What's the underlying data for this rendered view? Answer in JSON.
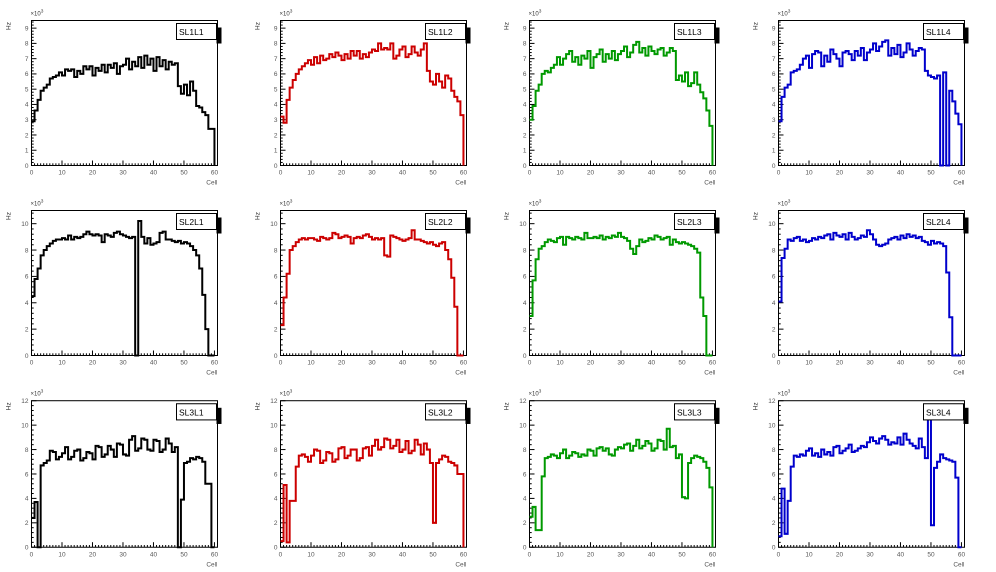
{
  "window": {
    "background": "#ffffff",
    "description": "ROOT-style canvas with 12 rate histograms (3 rows x 4 columns)"
  },
  "axes": {
    "x_label": "Cell",
    "y_label": "Hz",
    "exponent_label": "×10",
    "exponent_power": "3",
    "tick_color": "#555555",
    "frame_color": "#000000"
  },
  "chart_data": [
    {
      "type": "bar",
      "style": "step-histogram",
      "title": "SL1L1",
      "color": "#000000",
      "xlabel": "Cell",
      "ylabel": "Hz",
      "y_scale": "×10³",
      "xlim": [
        0,
        61
      ],
      "ylim": [
        0,
        9.5
      ],
      "bin_width": 1,
      "xticks": [
        0,
        10,
        20,
        30,
        40,
        50,
        60
      ],
      "yticks": [
        0,
        1,
        2,
        3,
        4,
        5,
        6,
        7,
        8,
        9
      ],
      "values": [
        2.9,
        3.6,
        4.3,
        4.9,
        5.1,
        5.3,
        5.7,
        5.8,
        5.9,
        6.1,
        5.9,
        6.3,
        6.2,
        6.3,
        5.8,
        6.2,
        6.0,
        6.5,
        6.3,
        6.5,
        5.9,
        6.4,
        6.2,
        6.6,
        6.1,
        6.6,
        6.4,
        6.7,
        6.0,
        6.5,
        6.6,
        7.0,
        6.3,
        6.8,
        6.5,
        7.1,
        6.4,
        7.2,
        6.6,
        7.0,
        6.2,
        7.1,
        6.5,
        6.9,
        6.3,
        6.8,
        6.6,
        6.7,
        5.2,
        4.7,
        5.3,
        4.6,
        5.5,
        4.9,
        3.9,
        3.8,
        3.5,
        3.3,
        2.4,
        2.4
      ]
    },
    {
      "type": "bar",
      "style": "step-histogram",
      "title": "SL1L2",
      "color": "#cc0000",
      "xlabel": "Cell",
      "ylabel": "Hz",
      "y_scale": "×10³",
      "xlim": [
        0,
        61
      ],
      "ylim": [
        0,
        9.5
      ],
      "bin_width": 1,
      "xticks": [
        0,
        10,
        20,
        30,
        40,
        50,
        60
      ],
      "yticks": [
        0,
        1,
        2,
        3,
        4,
        5,
        6,
        7,
        8,
        9
      ],
      "values": [
        3.2,
        2.8,
        4.3,
        5.1,
        5.6,
        6.0,
        6.3,
        6.5,
        6.7,
        6.9,
        6.6,
        7.1,
        6.7,
        7.2,
        6.9,
        7.0,
        7.3,
        7.1,
        7.4,
        7.2,
        6.9,
        7.3,
        7.0,
        7.5,
        7.2,
        7.5,
        7.0,
        7.3,
        7.1,
        7.4,
        7.6,
        7.5,
        8.0,
        7.6,
        7.7,
        7.6,
        8.0,
        7.0,
        7.2,
        7.6,
        7.8,
        7.1,
        7.3,
        7.8,
        7.4,
        7.2,
        7.6,
        8.0,
        6.2,
        5.5,
        5.3,
        6.0,
        5.5,
        5.1,
        5.9,
        5.7,
        4.9,
        4.5,
        4.2,
        3.3
      ]
    },
    {
      "type": "bar",
      "style": "step-histogram",
      "title": "SL1L3",
      "color": "#009900",
      "xlabel": "Cell",
      "ylabel": "Hz",
      "y_scale": "×10³",
      "xlim": [
        0,
        61
      ],
      "ylim": [
        0,
        9.5
      ],
      "bin_width": 1,
      "xticks": [
        0,
        10,
        20,
        30,
        40,
        50,
        60
      ],
      "yticks": [
        0,
        1,
        2,
        3,
        4,
        5,
        6,
        7,
        8,
        9
      ],
      "values": [
        3.0,
        3.9,
        4.9,
        5.3,
        6.0,
        6.2,
        6.1,
        6.4,
        6.6,
        7.1,
        6.6,
        7.0,
        7.3,
        7.5,
        6.8,
        7.1,
        6.6,
        7.2,
        7.0,
        7.5,
        6.4,
        7.1,
        7.3,
        7.6,
        6.8,
        7.3,
        7.0,
        7.5,
        6.9,
        7.3,
        7.5,
        7.8,
        7.1,
        7.4,
        7.9,
        8.1,
        7.4,
        7.7,
        7.2,
        7.8,
        7.5,
        7.3,
        7.6,
        7.7,
        7.2,
        7.4,
        7.7,
        7.5,
        5.6,
        5.9,
        5.5,
        6.1,
        5.2,
        5.4,
        6.1,
        5.3,
        4.8,
        4.4,
        3.6,
        2.6
      ]
    },
    {
      "type": "bar",
      "style": "step-histogram",
      "title": "SL1L4",
      "color": "#0000cc",
      "xlabel": "Cell",
      "ylabel": "Hz",
      "y_scale": "×10³",
      "xlim": [
        0,
        61
      ],
      "ylim": [
        0,
        9.5
      ],
      "bin_width": 1,
      "xticks": [
        0,
        10,
        20,
        30,
        40,
        50,
        60
      ],
      "yticks": [
        0,
        1,
        2,
        3,
        4,
        5,
        6,
        7,
        8,
        9
      ],
      "values": [
        2.9,
        4.5,
        5.1,
        5.3,
        6.1,
        6.2,
        6.3,
        6.6,
        7.0,
        7.2,
        6.4,
        7.3,
        7.5,
        7.4,
        6.5,
        7.2,
        6.8,
        7.6,
        7.3,
        7.0,
        6.5,
        7.4,
        7.5,
        7.3,
        6.9,
        7.5,
        7.2,
        7.7,
        6.9,
        7.4,
        7.6,
        8.0,
        7.5,
        7.8,
        8.1,
        8.2,
        7.2,
        7.7,
        7.3,
        7.9,
        7.1,
        7.4,
        8.0,
        7.6,
        7.2,
        7.5,
        7.7,
        7.6,
        6.2,
        5.9,
        5.8,
        5.7,
        5.9,
        0,
        6.1,
        0,
        4.9,
        4.2,
        3.4,
        2.7
      ]
    },
    {
      "type": "bar",
      "style": "step-histogram",
      "title": "SL2L1",
      "color": "#000000",
      "xlabel": "Cell",
      "ylabel": "Hz",
      "y_scale": "×10³",
      "xlim": [
        0,
        61
      ],
      "ylim": [
        0,
        11
      ],
      "bin_width": 1,
      "xticks": [
        0,
        10,
        20,
        30,
        40,
        50,
        60
      ],
      "yticks": [
        0,
        2,
        4,
        6,
        8,
        10
      ],
      "values": [
        4.5,
        5.8,
        6.6,
        7.6,
        8.0,
        8.3,
        8.5,
        8.7,
        8.8,
        8.8,
        8.9,
        8.8,
        9.1,
        8.8,
        9.0,
        8.9,
        9.0,
        9.2,
        9.4,
        9.2,
        9.1,
        9.2,
        9.1,
        8.6,
        9.2,
        9.1,
        9.0,
        9.3,
        9.4,
        9.2,
        9.1,
        9.0,
        8.9,
        9.0,
        0,
        10.2,
        9.0,
        8.5,
        8.9,
        8.4,
        8.5,
        8.6,
        9.3,
        9.4,
        8.8,
        8.8,
        8.7,
        8.6,
        8.7,
        8.5,
        8.6,
        8.5,
        8.3,
        8.0,
        7.6,
        6.6,
        4.6,
        2.0,
        0,
        0
      ]
    },
    {
      "type": "bar",
      "style": "step-histogram",
      "title": "SL2L2",
      "color": "#cc0000",
      "xlabel": "Cell",
      "ylabel": "Hz",
      "y_scale": "×10³",
      "xlim": [
        0,
        61
      ],
      "ylim": [
        0,
        11
      ],
      "bin_width": 1,
      "xticks": [
        0,
        10,
        20,
        30,
        40,
        50,
        60
      ],
      "yticks": [
        0,
        2,
        4,
        6,
        8,
        10
      ],
      "values": [
        2.3,
        4.4,
        6.2,
        8.0,
        8.3,
        8.6,
        8.8,
        8.9,
        8.8,
        8.9,
        8.9,
        8.8,
        8.7,
        9.0,
        8.9,
        8.8,
        8.9,
        9.3,
        9.2,
        8.9,
        9.0,
        9.1,
        9.0,
        8.5,
        8.9,
        9.0,
        8.9,
        9.1,
        9.2,
        9.0,
        8.8,
        8.9,
        8.8,
        8.9,
        7.6,
        7.5,
        9.1,
        9.0,
        8.9,
        8.8,
        8.7,
        8.8,
        8.9,
        9.5,
        8.8,
        8.8,
        8.7,
        8.6,
        8.5,
        8.6,
        8.4,
        8.3,
        8.5,
        8.6,
        8.0,
        7.3,
        5.9,
        3.7,
        0,
        0
      ]
    },
    {
      "type": "bar",
      "style": "step-histogram",
      "title": "SL2L3",
      "color": "#009900",
      "xlabel": "Cell",
      "ylabel": "Hz",
      "y_scale": "×10³",
      "xlim": [
        0,
        61
      ],
      "ylim": [
        0,
        11
      ],
      "bin_width": 1,
      "xticks": [
        0,
        10,
        20,
        30,
        40,
        50,
        60
      ],
      "yticks": [
        0,
        2,
        4,
        6,
        8,
        10
      ],
      "values": [
        3.0,
        5.7,
        7.3,
        8.1,
        8.3,
        8.6,
        8.8,
        8.7,
        8.6,
        8.9,
        9.0,
        8.4,
        9.0,
        8.9,
        8.8,
        9.0,
        8.9,
        8.8,
        9.3,
        8.9,
        8.9,
        9.0,
        8.9,
        9.1,
        8.8,
        9.0,
        8.9,
        9.1,
        9.0,
        9.3,
        9.0,
        8.9,
        8.7,
        8.1,
        7.7,
        8.3,
        8.8,
        8.6,
        8.7,
        8.9,
        8.8,
        9.1,
        9.0,
        8.8,
        8.9,
        9.0,
        8.4,
        8.8,
        8.6,
        8.5,
        8.6,
        8.5,
        8.4,
        8.3,
        8.1,
        7.8,
        4.4,
        3.0,
        0,
        0
      ]
    },
    {
      "type": "bar",
      "style": "step-histogram",
      "title": "SL2L4",
      "color": "#0000cc",
      "xlabel": "Cell",
      "ylabel": "Hz",
      "y_scale": "×10³",
      "xlim": [
        0,
        61
      ],
      "ylim": [
        0,
        11
      ],
      "bin_width": 1,
      "xticks": [
        0,
        10,
        20,
        30,
        40,
        50,
        60
      ],
      "yticks": [
        0,
        2,
        4,
        6,
        8,
        10
      ],
      "values": [
        4.1,
        7.4,
        8.1,
        8.8,
        8.7,
        8.9,
        9.0,
        8.7,
        8.8,
        8.6,
        8.7,
        8.9,
        8.8,
        9.0,
        8.9,
        9.1,
        9.2,
        8.8,
        9.3,
        9.1,
        9.0,
        9.2,
        8.8,
        9.3,
        9.0,
        8.8,
        8.9,
        9.1,
        9.0,
        9.5,
        9.2,
        8.8,
        8.4,
        8.3,
        8.4,
        8.5,
        8.8,
        8.9,
        9.0,
        8.8,
        9.1,
        8.9,
        9.2,
        9.0,
        9.1,
        8.9,
        9.0,
        8.7,
        8.6,
        8.4,
        8.7,
        8.5,
        8.6,
        8.5,
        8.3,
        6.3,
        2.9,
        0,
        0,
        0
      ]
    },
    {
      "type": "bar",
      "style": "step-histogram",
      "title": "SL3L1",
      "color": "#000000",
      "xlabel": "Cell",
      "ylabel": "Hz",
      "y_scale": "×10³",
      "xlim": [
        0,
        61
      ],
      "ylim": [
        0,
        12
      ],
      "bin_width": 1,
      "xticks": [
        0,
        10,
        20,
        30,
        40,
        50,
        60
      ],
      "yticks": [
        0,
        2,
        4,
        6,
        8,
        10,
        12
      ],
      "values": [
        2.4,
        3.7,
        0,
        6.7,
        6.9,
        7.1,
        7.9,
        7.8,
        7.2,
        7.4,
        7.7,
        8.2,
        7.2,
        7.4,
        7.9,
        8.0,
        7.1,
        7.3,
        7.8,
        7.7,
        7.2,
        8.3,
        8.2,
        7.4,
        7.6,
        8.3,
        8.0,
        7.4,
        8.5,
        8.4,
        7.6,
        7.5,
        8.8,
        9.1,
        7.9,
        8.1,
        8.9,
        8.8,
        8.0,
        7.9,
        8.8,
        8.7,
        7.8,
        8.0,
        8.9,
        8.5,
        7.8,
        8.2,
        0,
        3.9,
        6.9,
        7.0,
        7.3,
        7.2,
        7.4,
        7.3,
        7.0,
        5.2,
        5.2,
        0
      ]
    },
    {
      "type": "bar",
      "style": "step-histogram",
      "title": "SL3L2",
      "color": "#cc0000",
      "xlabel": "Cell",
      "ylabel": "Hz",
      "y_scale": "×10³",
      "xlim": [
        0,
        61
      ],
      "ylim": [
        0,
        12
      ],
      "bin_width": 1,
      "xticks": [
        0,
        10,
        20,
        30,
        40,
        50,
        60
      ],
      "yticks": [
        0,
        2,
        4,
        6,
        8,
        10,
        12
      ],
      "values": [
        0.5,
        5.1,
        0.4,
        3.8,
        3.8,
        6.6,
        7.5,
        7.6,
        7.4,
        7.0,
        7.5,
        8.0,
        7.9,
        6.9,
        7.1,
        7.8,
        7.7,
        7.0,
        7.2,
        8.1,
        8.2,
        7.3,
        7.5,
        8.0,
        8.0,
        7.1,
        7.3,
        8.1,
        8.2,
        7.5,
        8.3,
        8.8,
        8.0,
        8.2,
        8.9,
        8.8,
        8.1,
        8.3,
        8.8,
        7.8,
        8.0,
        8.7,
        7.7,
        7.9,
        8.8,
        8.4,
        7.6,
        8.5,
        8.0,
        6.9,
        2.0,
        6.9,
        7.2,
        7.5,
        7.4,
        7.0,
        6.9,
        6.7,
        6.0,
        6.0
      ]
    },
    {
      "type": "bar",
      "style": "step-histogram",
      "title": "SL3L3",
      "color": "#009900",
      "xlabel": "Cell",
      "ylabel": "Hz",
      "y_scale": "×10³",
      "xlim": [
        0,
        61
      ],
      "ylim": [
        0,
        12
      ],
      "bin_width": 1,
      "xticks": [
        0,
        10,
        20,
        30,
        40,
        50,
        60
      ],
      "yticks": [
        0,
        2,
        4,
        6,
        8,
        10,
        12
      ],
      "values": [
        2.5,
        3.3,
        1.4,
        1.4,
        5.8,
        7.3,
        7.4,
        7.6,
        7.5,
        7.3,
        7.7,
        8.0,
        7.3,
        7.5,
        7.8,
        7.7,
        7.4,
        7.6,
        7.5,
        8.0,
        7.9,
        7.5,
        8.1,
        8.2,
        7.9,
        8.1,
        7.6,
        7.5,
        8.0,
        8.2,
        8.1,
        8.4,
        8.5,
        7.9,
        8.3,
        8.8,
        8.1,
        8.3,
        8.7,
        8.5,
        7.9,
        8.1,
        8.8,
        8.7,
        8.0,
        9.7,
        8.2,
        8.3,
        7.3,
        7.6,
        4.1,
        4.0,
        6.9,
        7.3,
        7.5,
        7.4,
        7.3,
        7.0,
        6.5,
        4.9
      ]
    },
    {
      "type": "bar",
      "style": "step-histogram",
      "title": "SL3L4",
      "color": "#0000cc",
      "xlabel": "Cell",
      "ylabel": "Hz",
      "y_scale": "×10³",
      "xlim": [
        0,
        61
      ],
      "ylim": [
        0,
        12
      ],
      "bin_width": 1,
      "xticks": [
        0,
        10,
        20,
        30,
        40,
        50,
        60
      ],
      "yticks": [
        0,
        2,
        4,
        6,
        8,
        10,
        12
      ],
      "values": [
        0.9,
        4.8,
        1.1,
        3.8,
        6.6,
        7.5,
        7.4,
        7.6,
        7.5,
        7.9,
        8.1,
        7.5,
        7.7,
        7.4,
        8.0,
        7.6,
        7.8,
        7.5,
        8.2,
        8.3,
        7.7,
        7.9,
        8.1,
        8.4,
        7.8,
        7.9,
        8.1,
        8.3,
        8.2,
        8.6,
        9.0,
        8.7,
        8.5,
        8.9,
        9.1,
        8.8,
        8.4,
        8.6,
        8.5,
        9.0,
        8.4,
        9.3,
        8.8,
        8.5,
        8.3,
        8.1,
        8.9,
        8.2,
        7.3,
        10.6,
        1.8,
        6.5,
        7.0,
        7.6,
        7.3,
        7.2,
        7.1,
        7.0,
        5.7,
        0
      ]
    }
  ]
}
